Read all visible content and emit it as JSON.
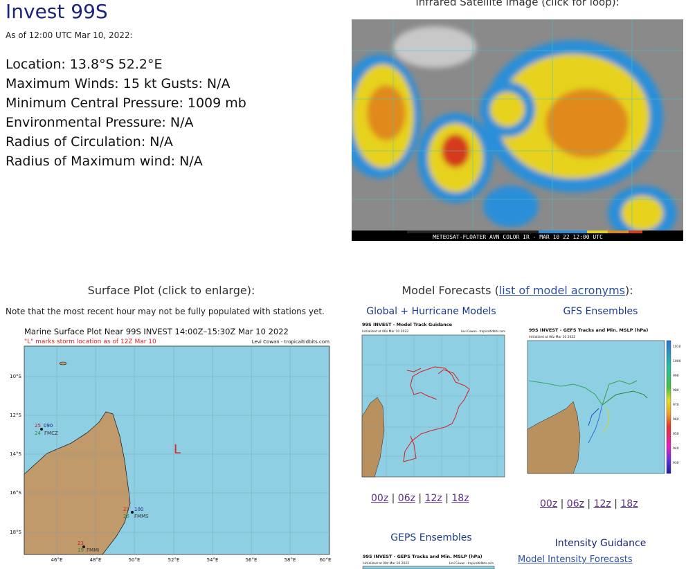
{
  "storm": {
    "title": "Invest 99S",
    "as_of": "As of 12:00 UTC Mar 10, 2022:",
    "location": "Location: 13.8°S 52.2°E",
    "winds": "Maximum Winds: 15 kt  Gusts: N/A",
    "pressure": "Minimum Central Pressure: 1009 mb",
    "env_pressure": "Environmental Pressure: N/A",
    "radius_circ": "Radius of Circulation: N/A",
    "radius_max": "Radius of Maximum wind: N/A"
  },
  "satellite": {
    "heading": "Infrared Satellite Image (click for loop):",
    "caption": "METEOSAT-FLOATER AVN COLOR IR - MAR 10 22 12:00 UTC"
  },
  "surface": {
    "heading": "Surface Plot (click to enlarge):",
    "note": "Note that the most recent hour may not be fully populated with stations yet.",
    "plot_title": "Marine Surface Plot Near 99S INVEST 14:00Z–15:30Z Mar 10 2022",
    "plot_subtitle": "\"L\" marks storm location as of 12Z Mar 10",
    "credit": "Levi Cowan - tropicaltidbits.com",
    "storm_marker": "L",
    "lat_labels": [
      "10°S",
      "12°S",
      "14°S",
      "16°S",
      "18°S"
    ],
    "lon_labels": [
      "46°E",
      "48°E",
      "50°E",
      "52°E",
      "54°E",
      "56°E",
      "58°E",
      "60°E"
    ],
    "stations": [
      {
        "id": "FMCZ",
        "temp": "25",
        "dew": "24",
        "pres": "090"
      },
      {
        "id": "FMMS",
        "temp": "27",
        "dew": "25",
        "pres": "100"
      },
      {
        "id": "FMMI",
        "temp": "23",
        "dew": "19",
        "pres": ""
      }
    ]
  },
  "models": {
    "heading_prefix": "Model Forecasts (",
    "heading_link": "list of model acronyms",
    "heading_suffix": "):",
    "global_title": "Global + Hurricane Models",
    "global_plot_title": "99S INVEST - Model Track Guidance",
    "global_plot_init": "Initialized at 06z Mar 10 2022",
    "gfs_title": "GFS Ensembles",
    "gfs_plot_title": "99S INVEST - GEFS Tracks and Min. MSLP (hPa)",
    "gfs_plot_init": "Initialized at 06z Mar 10 2022",
    "geps_title": "GEPS Ensembles",
    "geps_plot_title": "99S INVEST - GEPS Tracks and Min. MSLP (hPa)",
    "geps_plot_init": "Initialized at 00z Mar 10 2022",
    "intensity_title": "Intensity Guidance",
    "intensity_link": "Model Intensity Forecasts",
    "credit": "Levi Cowan - tropicaltidbits.com",
    "runs": [
      "00z",
      "06z",
      "12z",
      "18z"
    ],
    "separator": "|",
    "gefs_scale": [
      "1010",
      "1000",
      "990",
      "980",
      "970",
      "960",
      "950",
      "940",
      "930"
    ]
  }
}
